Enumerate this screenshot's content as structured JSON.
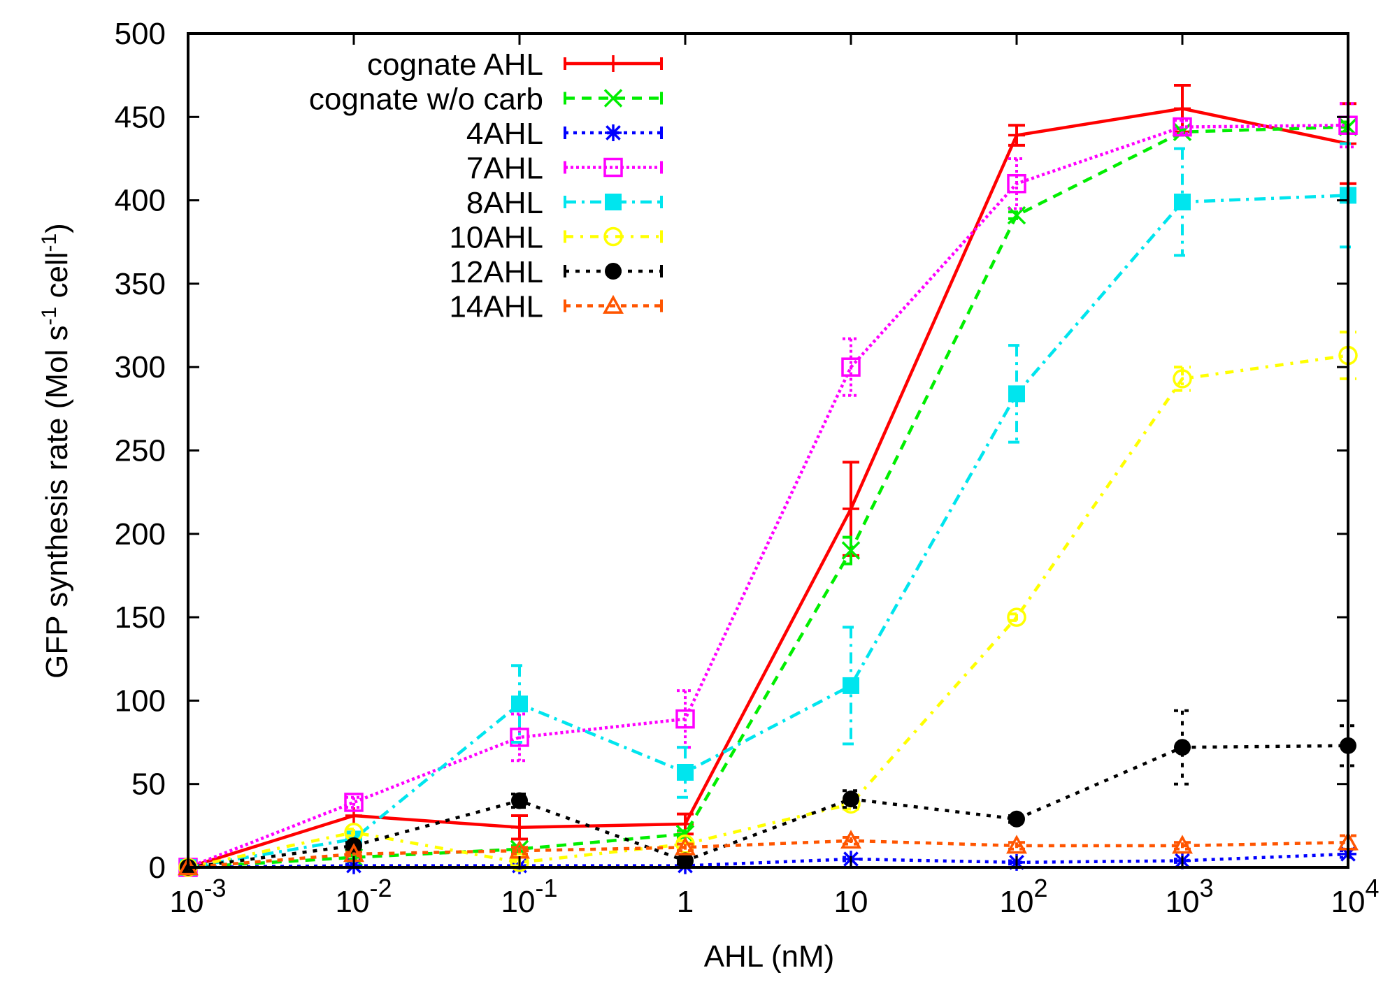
{
  "chart_data": {
    "type": "line",
    "title": "",
    "xlabel": "AHL (nM)",
    "ylabel": "GFP synthesis rate (Mol s-1 cell-1)",
    "ylabel_parts": {
      "main": "GFP synthesis rate (Mol s",
      "sup1": "-1",
      "mid": " cell",
      "sup2": "-1",
      "end": ")"
    },
    "xscale": "log",
    "xlim": [
      0.001,
      10000
    ],
    "ylim": [
      0,
      500
    ],
    "grid": false,
    "legend_position": "top-left",
    "x": [
      0.001,
      0.01,
      0.1,
      1,
      10,
      100,
      1000,
      10000
    ],
    "x_tick_labels": [
      {
        "base": "10",
        "exp": "-3"
      },
      {
        "base": "10",
        "exp": "-2"
      },
      {
        "base": "10",
        "exp": "-1"
      },
      {
        "base": "1",
        "exp": ""
      },
      {
        "base": "10",
        "exp": ""
      },
      {
        "base": "10",
        "exp": "2"
      },
      {
        "base": "10",
        "exp": "3"
      },
      {
        "base": "10",
        "exp": "4"
      }
    ],
    "y_ticks": [
      0,
      50,
      100,
      150,
      200,
      250,
      300,
      350,
      400,
      450,
      500
    ],
    "series": [
      {
        "name": "cognate AHL",
        "color": "#ff0000",
        "dash": "",
        "marker": "plus",
        "values": [
          0,
          31,
          24,
          26,
          215,
          439,
          455,
          434
        ],
        "errors": [
          0,
          0,
          7,
          6,
          28,
          6,
          14,
          24
        ]
      },
      {
        "name": "cognate w/o carb",
        "color": "#00ee00",
        "dash": "14,10",
        "marker": "x",
        "values": [
          0,
          6,
          11,
          20,
          190,
          391,
          441,
          444
        ],
        "errors": [
          0,
          1,
          2,
          2,
          8,
          2,
          2,
          3
        ]
      },
      {
        "name": "4AHL",
        "color": "#0000ff",
        "dash": "5,7",
        "marker": "star",
        "values": [
          0,
          1,
          1,
          1,
          5,
          3,
          4,
          8
        ],
        "errors": [
          0,
          1,
          1,
          1,
          1,
          1,
          1,
          2
        ]
      },
      {
        "name": "7AHL",
        "color": "#ff00ff",
        "dash": "4,4",
        "marker": "open-square",
        "values": [
          0,
          39,
          78,
          89,
          300,
          410,
          444,
          445
        ],
        "errors": [
          0,
          3,
          14,
          17,
          17,
          15,
          4,
          13
        ]
      },
      {
        "name": "8AHL",
        "color": "#00e5ee",
        "dash": "16,8,4,8",
        "marker": "filled-square",
        "values": [
          0,
          17,
          98,
          57,
          109,
          284,
          399,
          403
        ],
        "errors": [
          0,
          2,
          23,
          15,
          35,
          29,
          32,
          31
        ]
      },
      {
        "name": "10AHL",
        "color": "#ffff00",
        "dash": "12,10,4,10",
        "marker": "open-circle",
        "values": [
          0,
          21,
          3,
          14,
          38,
          150,
          293,
          307
        ],
        "errors": [
          0,
          2,
          2,
          2,
          3,
          2,
          7,
          14
        ]
      },
      {
        "name": "12AHL",
        "color": "#000000",
        "dash": "6,9",
        "marker": "filled-circle",
        "values": [
          0,
          13,
          40,
          4,
          41,
          29,
          72,
          73
        ],
        "errors": [
          0,
          2,
          4,
          2,
          5,
          2,
          22,
          12
        ]
      },
      {
        "name": "14AHL",
        "color": "#ff5500",
        "dash": "8,8",
        "marker": "open-triangle",
        "values": [
          0,
          8,
          10,
          12,
          16,
          13,
          13,
          15
        ],
        "errors": [
          0,
          1,
          2,
          2,
          2,
          2,
          2,
          4
        ]
      }
    ]
  }
}
